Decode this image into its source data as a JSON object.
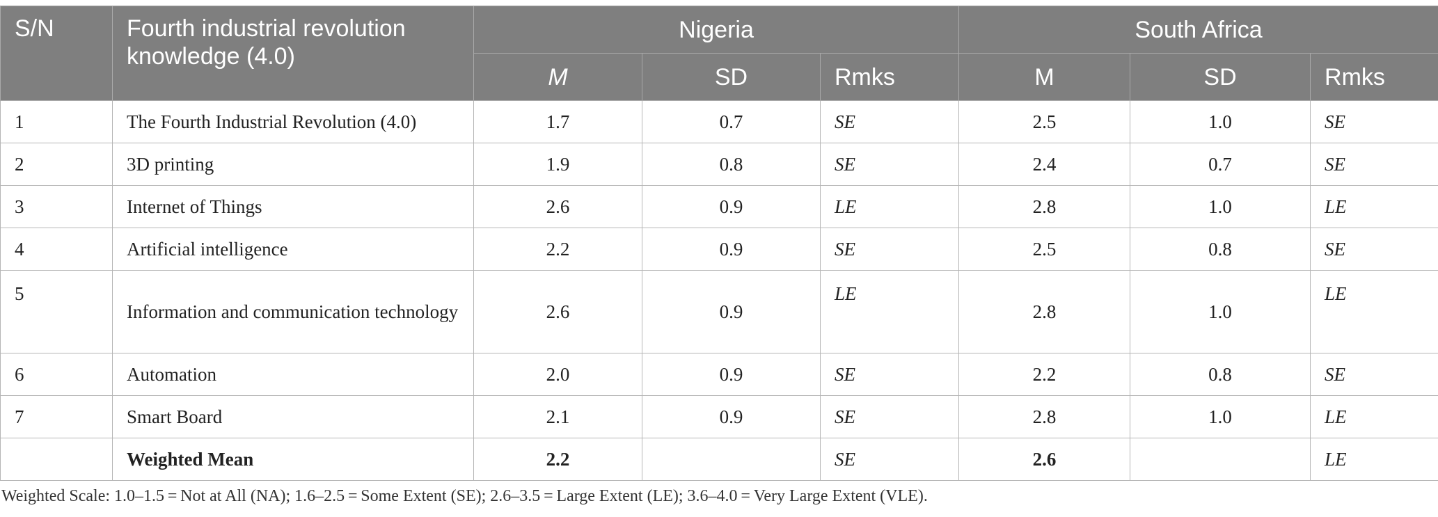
{
  "header": {
    "sn": "S/N",
    "knowledge": "Fourth industrial revolution knowledge (4.0)",
    "nigeria": "Nigeria",
    "south_africa": "South Africa",
    "nigeria_m": "M",
    "nigeria_sd": "SD",
    "nigeria_rmks": "Rmks",
    "sa_m": "M",
    "sa_sd": "SD",
    "sa_rmks": "Rmks"
  },
  "rows": [
    {
      "sn": "1",
      "item": "The Fourth Industrial Revolution (4.0)",
      "ng_m": "1.7",
      "ng_sd": "0.7",
      "ng_rmk": "SE",
      "sa_m": "2.5",
      "sa_sd": "1.0",
      "sa_rmk": "SE"
    },
    {
      "sn": "2",
      "item": "3D printing",
      "ng_m": "1.9",
      "ng_sd": "0.8",
      "ng_rmk": "SE",
      "sa_m": "2.4",
      "sa_sd": "0.7",
      "sa_rmk": "SE"
    },
    {
      "sn": "3",
      "item": "Internet of Things",
      "ng_m": "2.6",
      "ng_sd": "0.9",
      "ng_rmk": "LE",
      "sa_m": "2.8",
      "sa_sd": "1.0",
      "sa_rmk": "LE"
    },
    {
      "sn": "4",
      "item": "Artificial intelligence",
      "ng_m": "2.2",
      "ng_sd": "0.9",
      "ng_rmk": "SE",
      "sa_m": "2.5",
      "sa_sd": "0.8",
      "sa_rmk": "SE"
    },
    {
      "sn": "5",
      "item": "Information and communication technology",
      "ng_m": "2.6",
      "ng_sd": "0.9",
      "ng_rmk": "LE",
      "sa_m": "2.8",
      "sa_sd": "1.0",
      "sa_rmk": "LE"
    },
    {
      "sn": "6",
      "item": "Automation",
      "ng_m": "2.0",
      "ng_sd": "0.9",
      "ng_rmk": "SE",
      "sa_m": "2.2",
      "sa_sd": "0.8",
      "sa_rmk": "SE"
    },
    {
      "sn": "7",
      "item": "Smart Board",
      "ng_m": "2.1",
      "ng_sd": "0.9",
      "ng_rmk": "SE",
      "sa_m": "2.8",
      "sa_sd": "1.0",
      "sa_rmk": "LE"
    }
  ],
  "weighted": {
    "label": "Weighted Mean",
    "ng_m": "2.2",
    "ng_rmk": "SE",
    "sa_m": "2.6",
    "sa_rmk": "LE"
  },
  "footnote": "Weighted Scale: 1.0–1.5 = Not at All (NA); 1.6–2.5 = Some Extent (SE); 2.6–3.5 = Large Extent (LE); 3.6–4.0 = Very Large Extent (VLE)."
}
